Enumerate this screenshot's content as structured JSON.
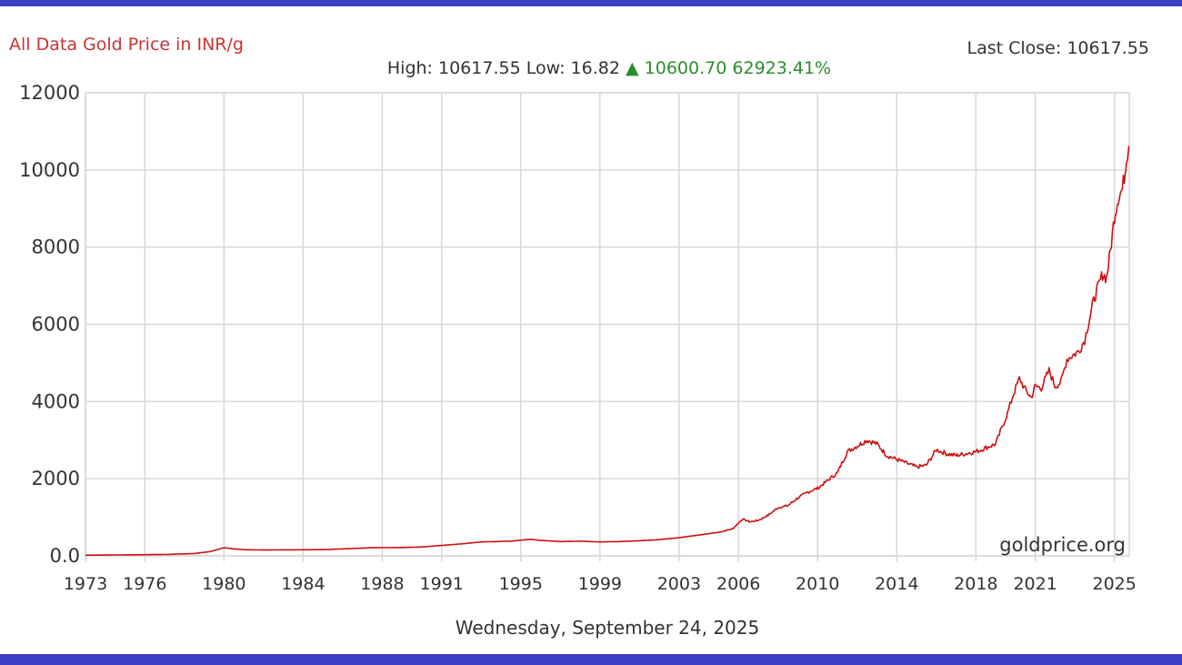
{
  "header": {
    "title": "All Data Gold Price in INR/g",
    "last_close_label": "Last Close:",
    "last_close_value": "10617.55",
    "high_label": "High:",
    "high_value": "10617.55",
    "low_label": "Low:",
    "low_value": "16.82",
    "change_arrow": "▲",
    "change_value": "10600.70",
    "change_pct": "62923.41%"
  },
  "footer": {
    "date": "Wednesday, September 24, 2025"
  },
  "watermark": "goldprice.org",
  "colors": {
    "line": "#cc1111",
    "title": "#cc3333",
    "up": "#2e8b2e",
    "frame": "#3b3fc4",
    "grid": "#d6d6de"
  },
  "chart_data": {
    "type": "line",
    "title": "All Data Gold Price in INR/g",
    "xlabel": "",
    "ylabel": "",
    "ylim": [
      0,
      12000
    ],
    "y_ticks": [
      "0.0",
      "2000",
      "4000",
      "6000",
      "8000",
      "10000",
      "12000"
    ],
    "x_ticks": [
      "1973",
      "1976",
      "1980",
      "1984",
      "1988",
      "1991",
      "1995",
      "1999",
      "2003",
      "2006",
      "2010",
      "2014",
      "2018",
      "2021",
      "2025"
    ],
    "grid": true,
    "series": [
      {
        "x": [
          1973.0,
          1975.0,
          1977.0,
          1978.5,
          1979.3,
          1980.0,
          1980.5,
          1981.0,
          1982.0,
          1983.0,
          1985.0,
          1986.5,
          1987.5,
          1989.0,
          1990.0,
          1991.0,
          1992.0,
          1993.0,
          1994.5,
          1995.5,
          1996.0,
          1997.0,
          1998.0,
          1999.0,
          2000.0,
          2001.0,
          2002.0,
          2003.0,
          2004.0,
          2005.0,
          2005.7,
          2006.2,
          2006.6,
          2007.0,
          2007.5,
          2008.0,
          2008.5,
          2009.0,
          2009.5,
          2010.0,
          2010.5,
          2011.0,
          2011.5,
          2012.0,
          2012.5,
          2013.0,
          2013.5,
          2014.0,
          2014.5,
          2015.0,
          2015.5,
          2016.0,
          2016.5,
          2017.0,
          2017.5,
          2018.0,
          2018.5,
          2019.0,
          2019.3,
          2019.6,
          2019.9,
          2020.2,
          2020.5,
          2020.8,
          2021.0,
          2021.3,
          2021.7,
          2022.0,
          2022.3,
          2022.6,
          2022.9,
          2023.2,
          2023.5,
          2023.8,
          2024.0,
          2024.2,
          2024.4,
          2024.6,
          2024.8,
          2025.0,
          2025.2,
          2025.4,
          2025.55,
          2025.6,
          2025.73
        ],
        "values": [
          16.82,
          25,
          35,
          60,
          110,
          210,
          180,
          160,
          150,
          155,
          160,
          190,
          210,
          215,
          230,
          270,
          310,
          360,
          380,
          430,
          400,
          370,
          380,
          360,
          370,
          390,
          420,
          470,
          540,
          610,
          700,
          950,
          880,
          920,
          1050,
          1250,
          1300,
          1500,
          1650,
          1750,
          1950,
          2150,
          2700,
          2850,
          3000,
          2900,
          2600,
          2500,
          2400,
          2300,
          2350,
          2750,
          2650,
          2600,
          2650,
          2700,
          2800,
          2900,
          3300,
          3700,
          4200,
          4600,
          4300,
          4100,
          4400,
          4350,
          4800,
          4400,
          4500,
          5100,
          5200,
          5300,
          5600,
          6300,
          6700,
          7000,
          7300,
          7200,
          7900,
          8800,
          9300,
          9500,
          10000,
          10300,
          10617.55
        ]
      }
    ]
  }
}
